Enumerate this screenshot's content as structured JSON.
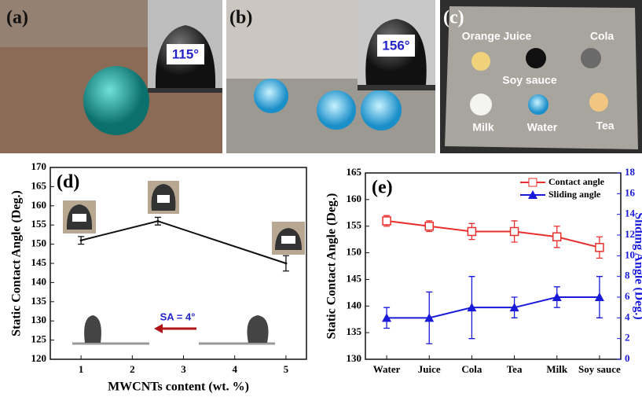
{
  "photos": {
    "panels": [
      {
        "label": "(a)",
        "angle": "115°"
      },
      {
        "label": "(b)",
        "angle": "156°"
      },
      {
        "label": "(c)",
        "liquids": [
          "Orange Juice",
          "Cola",
          "Soy sauce",
          "Milk",
          "Water",
          "Tea"
        ]
      }
    ]
  },
  "chart_data": [
    {
      "type": "line",
      "label": "(d)",
      "annotation": "SA = 4°",
      "xlabel": "MWCNTs content (wt. %)",
      "ylabel": "Static Contact Angle (Deg.)",
      "x": [
        1,
        2.5,
        5
      ],
      "series": [
        {
          "color": "#111111",
          "marker": "none",
          "values": [
            151,
            156,
            145
          ],
          "errors": [
            1,
            1,
            2
          ]
        }
      ],
      "xlim": [
        0.4,
        5.4
      ],
      "xticks": [
        1,
        2,
        3,
        4,
        5
      ],
      "ylim": [
        120,
        170
      ],
      "yticks": [
        120,
        125,
        130,
        135,
        140,
        145,
        150,
        155,
        160,
        165,
        170
      ]
    },
    {
      "type": "line",
      "label": "(e)",
      "ylabel": "Static Contact Angle (Deg.)",
      "y2label": "Sliding Angle (Deg.)",
      "categories": [
        "Water",
        "Juice",
        "Cola",
        "Tea",
        "Milk",
        "Soy sauce"
      ],
      "series": [
        {
          "name": "Contact angle",
          "color": "#e8312f",
          "marker": "square-open",
          "values": [
            156,
            155,
            154,
            154,
            153,
            151
          ],
          "errors": [
            1,
            1,
            1.5,
            2,
            2,
            2
          ]
        },
        {
          "name": "Sliding angle",
          "color": "#1a1adb",
          "marker": "triangle",
          "axis": "y2",
          "values": [
            4,
            4,
            5,
            5,
            6,
            6
          ],
          "errors": [
            1,
            2.5,
            3,
            1,
            1,
            2
          ]
        }
      ],
      "ylim": [
        130,
        165
      ],
      "yticks": [
        130,
        135,
        140,
        145,
        150,
        155,
        160,
        165
      ],
      "y2lim": [
        0,
        18
      ],
      "y2ticks": [
        0,
        2,
        4,
        6,
        8,
        10,
        12,
        14,
        16,
        18
      ],
      "legend": "upper right"
    }
  ]
}
